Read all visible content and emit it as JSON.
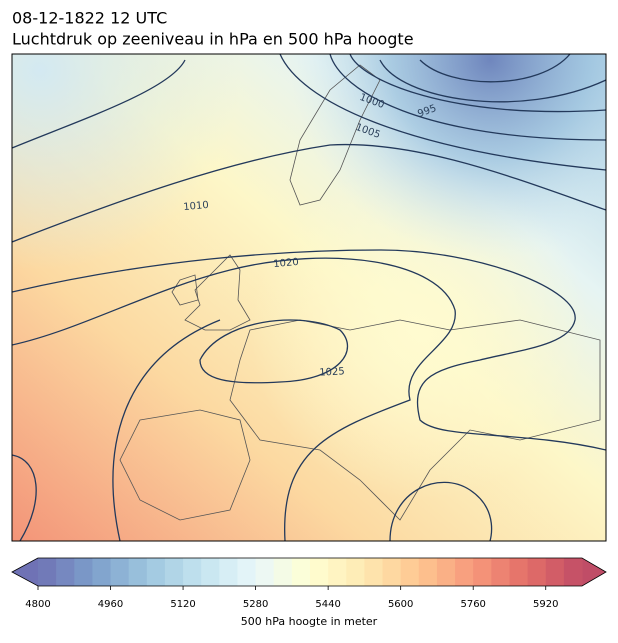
{
  "header": {
    "title_line1": "08-12-1822 12 UTC",
    "title_line2": "Luchtdruk op zeeniveau in hPa en 500 hPa hoogte"
  },
  "map": {
    "contour_labels": [
      995,
      1000,
      1005,
      1010,
      1020,
      1025
    ]
  },
  "colorbar": {
    "label": "500 hPa hoogte in meter",
    "lim": [
      4800,
      6000
    ],
    "ticks": [
      4800,
      4960,
      5120,
      5280,
      5440,
      5600,
      5760,
      5920
    ]
  }
}
